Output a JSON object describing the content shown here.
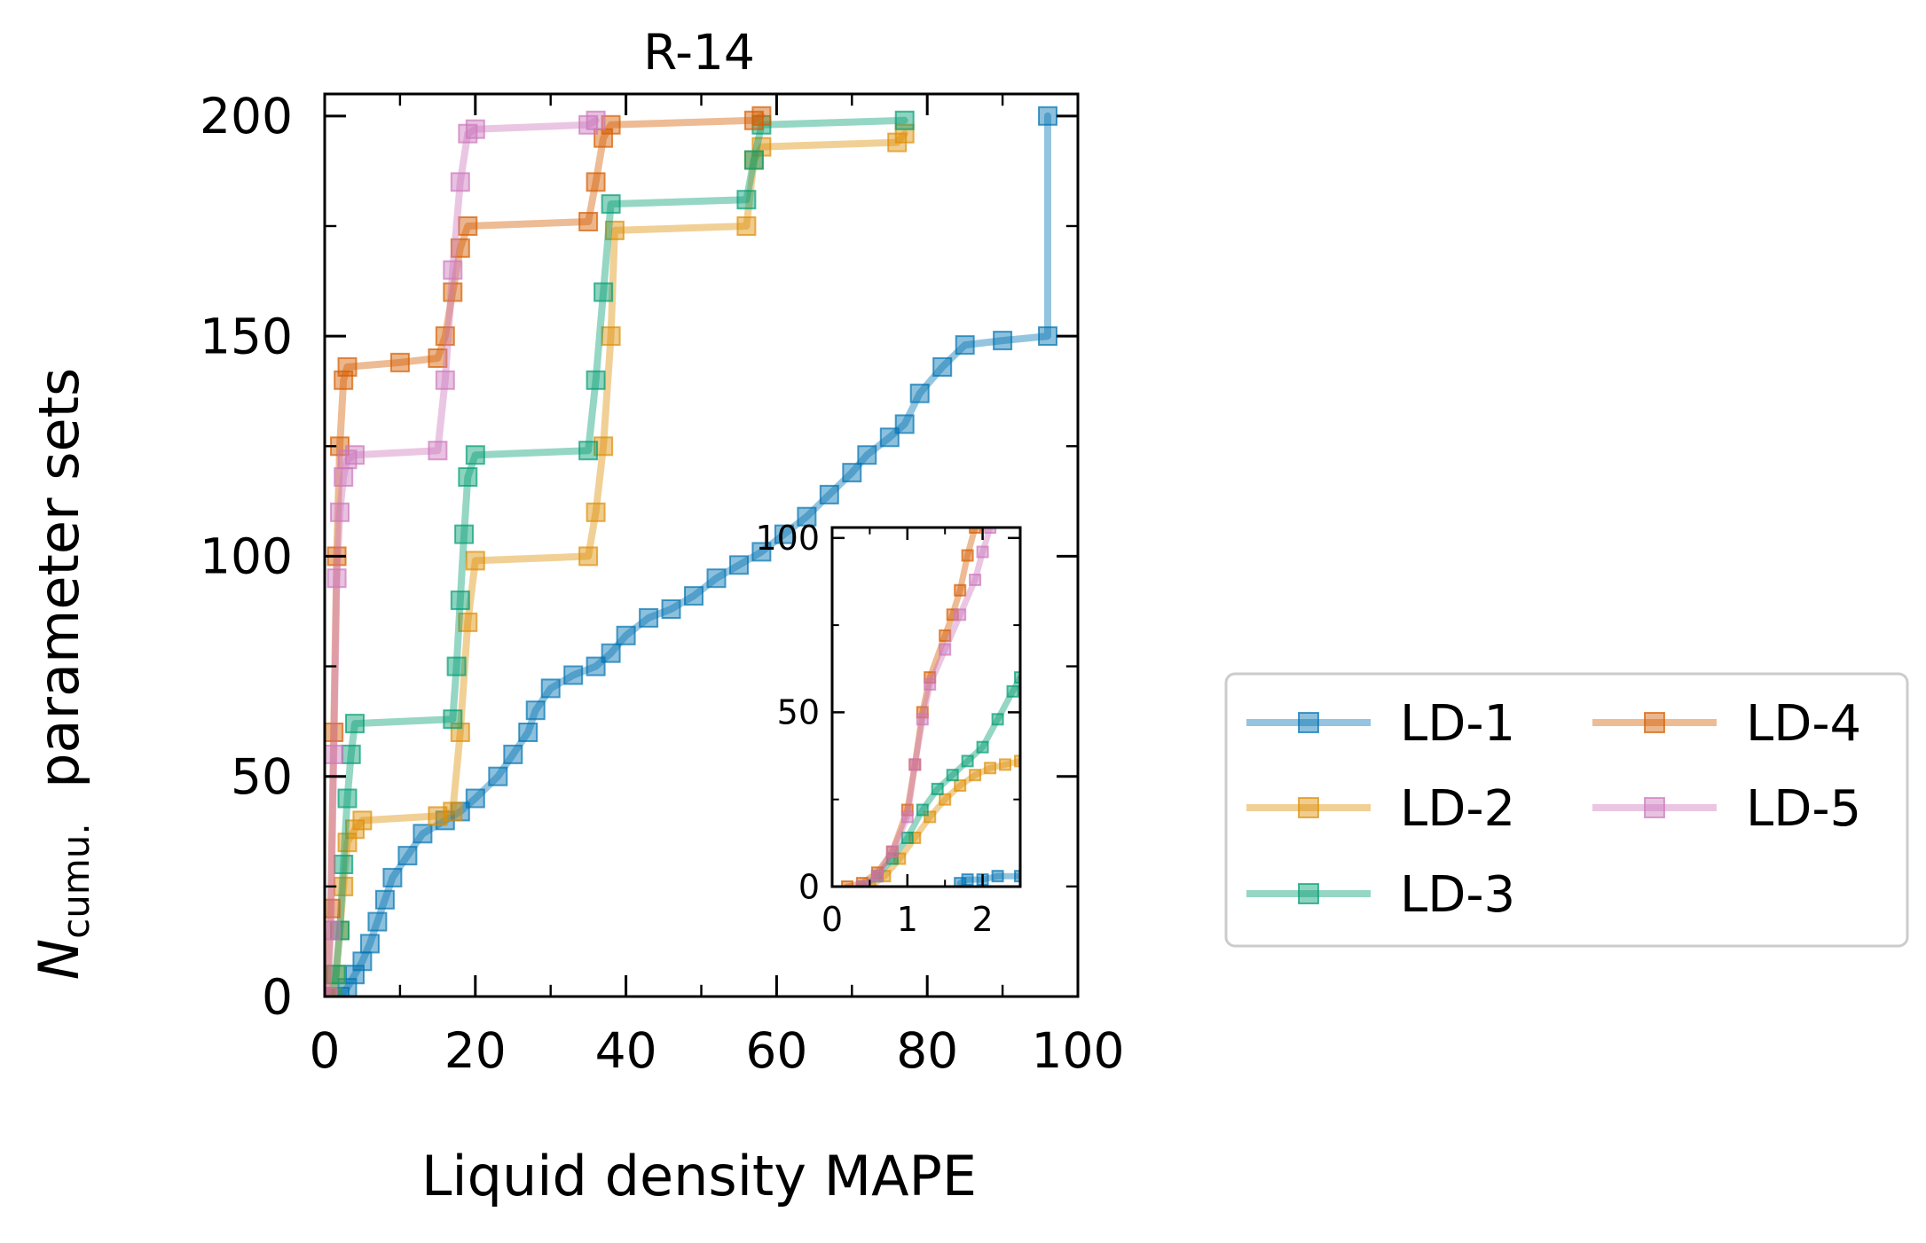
{
  "chart_data": {
    "type": "line",
    "title": "R-14",
    "xlabel": "Liquid density MAPE",
    "ylabel_symbol": "N",
    "ylabel_subscript": "cumu.",
    "ylabel_rest": "parameter sets",
    "xlim": [
      0,
      100
    ],
    "ylim": [
      0,
      205
    ],
    "xticks": [
      0,
      20,
      40,
      60,
      80,
      100
    ],
    "yticks": [
      0,
      50,
      100,
      150,
      200
    ],
    "grid": false,
    "legend_position": "right, outside plot area, two columns",
    "series": [
      {
        "name": "LD-1",
        "color": "#0173b2",
        "points": [
          [
            2,
            0
          ],
          [
            3,
            2
          ],
          [
            4,
            5
          ],
          [
            5,
            8
          ],
          [
            6,
            12
          ],
          [
            7,
            17
          ],
          [
            8,
            22
          ],
          [
            9,
            27
          ],
          [
            11,
            32
          ],
          [
            13,
            37
          ],
          [
            16,
            40
          ],
          [
            18,
            42
          ],
          [
            20,
            45
          ],
          [
            23,
            50
          ],
          [
            25,
            55
          ],
          [
            27,
            60
          ],
          [
            28,
            65
          ],
          [
            30,
            70
          ],
          [
            33,
            73
          ],
          [
            36,
            75
          ],
          [
            38,
            78
          ],
          [
            40,
            82
          ],
          [
            43,
            86
          ],
          [
            46,
            88
          ],
          [
            49,
            91
          ],
          [
            52,
            95
          ],
          [
            55,
            98
          ],
          [
            58,
            101
          ],
          [
            61,
            105
          ],
          [
            64,
            109
          ],
          [
            67,
            114
          ],
          [
            70,
            119
          ],
          [
            72,
            123
          ],
          [
            75,
            127
          ],
          [
            77,
            130
          ],
          [
            79,
            137
          ],
          [
            82,
            143
          ],
          [
            85,
            148
          ],
          [
            90,
            149
          ],
          [
            96,
            150
          ],
          [
            96,
            200
          ]
        ]
      },
      {
        "name": "LD-2",
        "color": "#de8f05",
        "points": [
          [
            1,
            0
          ],
          [
            1.5,
            5
          ],
          [
            2,
            15
          ],
          [
            2.5,
            25
          ],
          [
            3,
            35
          ],
          [
            4,
            38
          ],
          [
            5,
            40
          ],
          [
            15,
            41
          ],
          [
            17,
            42
          ],
          [
            18,
            60
          ],
          [
            19,
            85
          ],
          [
            20,
            99
          ],
          [
            35,
            100
          ],
          [
            36,
            110
          ],
          [
            37,
            125
          ],
          [
            38,
            150
          ],
          [
            38.5,
            174
          ],
          [
            56,
            175
          ],
          [
            57,
            190
          ],
          [
            58,
            193
          ],
          [
            76,
            194
          ],
          [
            77,
            196
          ]
        ]
      },
      {
        "name": "LD-3",
        "color": "#029e73",
        "points": [
          [
            1,
            0
          ],
          [
            1.5,
            5
          ],
          [
            2,
            15
          ],
          [
            2.5,
            30
          ],
          [
            3,
            45
          ],
          [
            3.5,
            55
          ],
          [
            4,
            62
          ],
          [
            17,
            63
          ],
          [
            17.5,
            75
          ],
          [
            18,
            90
          ],
          [
            18.5,
            105
          ],
          [
            19,
            118
          ],
          [
            20,
            123
          ],
          [
            35,
            124
          ],
          [
            36,
            140
          ],
          [
            37,
            160
          ],
          [
            38,
            180
          ],
          [
            56,
            181
          ],
          [
            57,
            190
          ],
          [
            58,
            198
          ],
          [
            77,
            199
          ]
        ]
      },
      {
        "name": "LD-4",
        "color": "#d55e00",
        "points": [
          [
            0.3,
            0
          ],
          [
            0.8,
            20
          ],
          [
            1.2,
            60
          ],
          [
            1.6,
            100
          ],
          [
            2,
            125
          ],
          [
            2.5,
            140
          ],
          [
            3,
            143
          ],
          [
            10,
            144
          ],
          [
            15,
            145
          ],
          [
            16,
            150
          ],
          [
            17,
            160
          ],
          [
            18,
            170
          ],
          [
            19,
            175
          ],
          [
            35,
            176
          ],
          [
            36,
            185
          ],
          [
            37,
            195
          ],
          [
            38,
            198
          ],
          [
            57,
            199
          ],
          [
            58,
            200
          ]
        ]
      },
      {
        "name": "LD-5",
        "color": "#cc78bc",
        "points": [
          [
            0.4,
            0
          ],
          [
            0.8,
            15
          ],
          [
            1.2,
            55
          ],
          [
            1.6,
            95
          ],
          [
            2,
            110
          ],
          [
            2.5,
            118
          ],
          [
            3,
            122
          ],
          [
            4,
            123
          ],
          [
            15,
            124
          ],
          [
            16,
            140
          ],
          [
            17,
            165
          ],
          [
            18,
            185
          ],
          [
            19,
            196
          ],
          [
            20,
            197
          ],
          [
            35,
            198
          ],
          [
            36,
            199
          ]
        ]
      }
    ],
    "inset": {
      "xlim": [
        0,
        2.5
      ],
      "ylim": [
        0,
        103
      ],
      "xticks": [
        0,
        1,
        2
      ],
      "yticks": [
        0,
        50,
        100
      ],
      "series": [
        {
          "name": "LD-1",
          "points": [
            [
              1.7,
              1
            ],
            [
              1.8,
              2
            ],
            [
              2.0,
              2
            ],
            [
              2.2,
              3
            ],
            [
              2.5,
              3
            ]
          ]
        },
        {
          "name": "LD-2",
          "points": [
            [
              0.5,
              0
            ],
            [
              0.7,
              3
            ],
            [
              0.9,
              8
            ],
            [
              1.1,
              14
            ],
            [
              1.3,
              20
            ],
            [
              1.5,
              25
            ],
            [
              1.7,
              29
            ],
            [
              1.9,
              32
            ],
            [
              2.1,
              34
            ],
            [
              2.3,
              35
            ],
            [
              2.5,
              36
            ]
          ]
        },
        {
          "name": "LD-3",
          "points": [
            [
              0.4,
              0
            ],
            [
              0.6,
              3
            ],
            [
              0.8,
              8
            ],
            [
              1.0,
              14
            ],
            [
              1.2,
              22
            ],
            [
              1.4,
              28
            ],
            [
              1.6,
              32
            ],
            [
              1.8,
              36
            ],
            [
              2.0,
              40
            ],
            [
              2.2,
              48
            ],
            [
              2.4,
              56
            ],
            [
              2.5,
              60
            ]
          ]
        },
        {
          "name": "LD-4",
          "points": [
            [
              0.2,
              0
            ],
            [
              0.4,
              1
            ],
            [
              0.6,
              4
            ],
            [
              0.8,
              10
            ],
            [
              1.0,
              22
            ],
            [
              1.1,
              35
            ],
            [
              1.2,
              50
            ],
            [
              1.3,
              60
            ],
            [
              1.5,
              72
            ],
            [
              1.6,
              78
            ],
            [
              1.7,
              85
            ],
            [
              1.8,
              95
            ],
            [
              1.9,
              103
            ]
          ]
        },
        {
          "name": "LD-5",
          "points": [
            [
              0.4,
              0
            ],
            [
              0.6,
              3
            ],
            [
              0.8,
              10
            ],
            [
              1.0,
              20
            ],
            [
              1.1,
              35
            ],
            [
              1.2,
              48
            ],
            [
              1.3,
              58
            ],
            [
              1.5,
              68
            ],
            [
              1.7,
              78
            ],
            [
              1.9,
              88
            ],
            [
              2.0,
              96
            ],
            [
              2.1,
              103
            ]
          ]
        }
      ]
    }
  }
}
